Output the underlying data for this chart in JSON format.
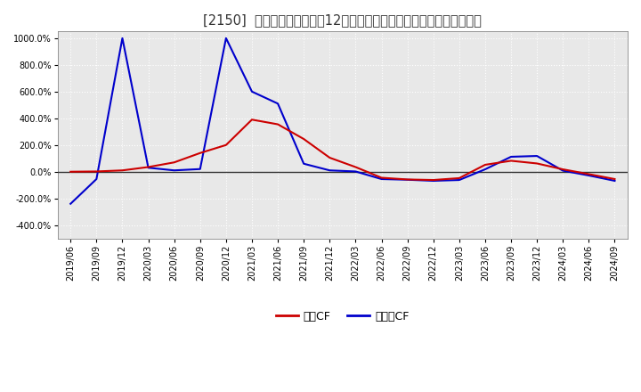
{
  "title": "[2150]  キャッシュフローの12か月移動合計の対前年同期増減率の推移",
  "ylim": [
    -500,
    1050
  ],
  "yticks": [
    -400,
    -200,
    0,
    200,
    400,
    600,
    800,
    1000
  ],
  "background_color": "#ffffff",
  "plot_bg_color": "#e8e8e8",
  "grid_color": "#ffffff",
  "zero_line_color": "#333333",
  "dates": [
    "2019/06",
    "2019/09",
    "2019/12",
    "2020/03",
    "2020/06",
    "2020/09",
    "2020/12",
    "2021/03",
    "2021/06",
    "2021/09",
    "2021/12",
    "2022/03",
    "2022/06",
    "2022/09",
    "2022/12",
    "2023/03",
    "2023/06",
    "2023/09",
    "2023/12",
    "2024/03",
    "2024/06",
    "2024/09"
  ],
  "operating_cf": [
    0.0,
    2.0,
    10.0,
    35.0,
    70.0,
    140.0,
    200.0,
    390.0,
    355.0,
    245.0,
    105.0,
    35.0,
    -45.0,
    -58.0,
    -62.0,
    -48.0,
    52.0,
    82.0,
    62.0,
    18.0,
    -18.0,
    -55.0
  ],
  "free_cf": [
    -240.0,
    -55.0,
    1000.0,
    30.0,
    10.0,
    20.0,
    1000.0,
    600.0,
    510.0,
    60.0,
    10.0,
    2.0,
    -55.0,
    -60.0,
    -68.0,
    -62.0,
    18.0,
    112.0,
    118.0,
    8.0,
    -28.0,
    -68.0
  ],
  "operating_cf_color": "#cc0000",
  "free_cf_color": "#0000cc",
  "operating_cf_label": "営業CF",
  "free_cf_label": "フリーCF",
  "line_width": 1.5,
  "title_fontsize": 10.5,
  "tick_fontsize": 7,
  "legend_fontsize": 9
}
